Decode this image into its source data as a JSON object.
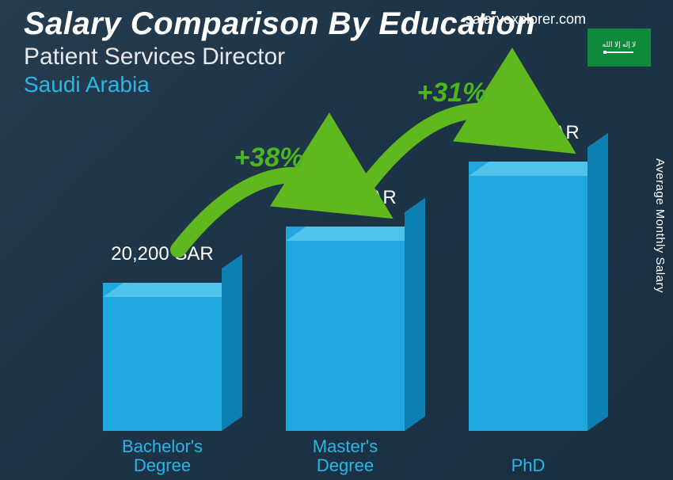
{
  "header": {
    "title": "Salary Comparison By Education",
    "subtitle": "Patient Services Director",
    "country": "Saudi Arabia",
    "country_color": "#29b6e8",
    "brand_prefix": "salaryexplorer",
    "brand_suffix": ".com",
    "flag_bg": "#0d8a3a"
  },
  "yaxis_label": "Average Monthly Salary",
  "chart": {
    "type": "bar-3d",
    "max_value": 36700,
    "bar_front_color": "#1fa8e0",
    "bar_top_color": "#4fc3ec",
    "bar_side_color": "#0d7fb0",
    "category_color": "#29b6e8",
    "bars": [
      {
        "category": "Bachelor's Degree",
        "value": 20200,
        "value_label": "20,200 SAR",
        "x_pct": 10
      },
      {
        "category": "Master's Degree",
        "value": 27900,
        "value_label": "27,900 SAR",
        "x_pct": 43
      },
      {
        "category": "PhD",
        "value": 36700,
        "value_label": "36,700 SAR",
        "x_pct": 76
      }
    ],
    "increases": [
      {
        "label": "+38%",
        "from": 0,
        "to": 1
      },
      {
        "label": "+31%",
        "from": 1,
        "to": 2
      }
    ],
    "arrow_color": "#5fb81e",
    "pct_color": "#4db51e"
  }
}
